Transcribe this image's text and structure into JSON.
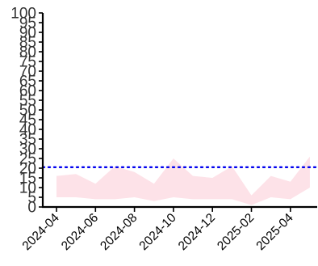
{
  "chart_data": {
    "type": "area",
    "title": "",
    "xlabel": "",
    "ylabel": "",
    "x": [
      "2024-04",
      "2024-05",
      "2024-06",
      "2024-07",
      "2024-08",
      "2024-09",
      "2024-10",
      "2024-11",
      "2024-12",
      "2025-01",
      "2025-02",
      "2025-03",
      "2025-04",
      "2025-05"
    ],
    "series": [
      {
        "type": "band",
        "lower": [
          5,
          5,
          4,
          4,
          5,
          3,
          5,
          4,
          4,
          4,
          1,
          5,
          4,
          10
        ],
        "upper": [
          16,
          17,
          12,
          21,
          18,
          12,
          25,
          16,
          15,
          21,
          6,
          16,
          13,
          26
        ],
        "color": "#fde2e8"
      }
    ],
    "reference_line": {
      "y": 20.5,
      "color": "#0000ee",
      "style": "dotted"
    },
    "ylim": [
      0,
      100
    ],
    "y_ticks": [
      "0",
      "5",
      "10",
      "15",
      "20",
      "25",
      "30",
      "35",
      "40",
      "45",
      "50",
      "55",
      "60",
      "65",
      "70",
      "75",
      "80",
      "85",
      "90",
      "95",
      "100"
    ],
    "x_ticks": [
      "2024-04",
      "2024-06",
      "2024-08",
      "2024-10",
      "2024-12",
      "2025-02",
      "2025-04"
    ],
    "grid": false,
    "legend": "none"
  }
}
